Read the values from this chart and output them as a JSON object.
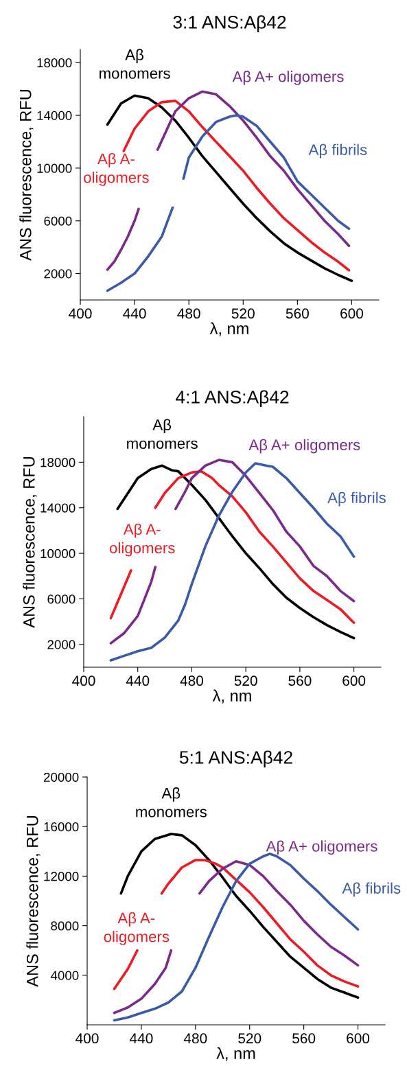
{
  "chart_data": [
    {
      "type": "line",
      "title": "3:1 ANS:Aβ42",
      "xlabel": "λ, nm",
      "ylabel": "ANS fluorescence, RFU",
      "xlim": [
        400,
        620
      ],
      "ylim": [
        0,
        19000
      ],
      "xticks": [
        400,
        440,
        480,
        520,
        560,
        600
      ],
      "yticks": [
        2000,
        6000,
        10000,
        14000,
        18000
      ],
      "series": [
        {
          "name": "Aβ\nmonomers",
          "color": "#000000",
          "x": [
            420,
            430,
            440,
            450,
            460,
            470,
            480,
            490,
            500,
            510,
            520,
            530,
            540,
            550,
            560,
            570,
            580,
            590,
            600
          ],
          "values": [
            13300,
            14900,
            15500,
            15300,
            14600,
            13600,
            12300,
            10900,
            9700,
            8500,
            7300,
            6200,
            5200,
            4300,
            3600,
            3000,
            2400,
            1900,
            1450
          ]
        },
        {
          "name": "Aβ A-\noligomers",
          "color": "#ed1c24",
          "x": [
            432,
            440,
            450,
            460,
            470,
            480,
            490,
            500,
            510,
            520,
            530,
            540,
            550,
            560,
            570,
            580,
            590,
            598
          ],
          "values": [
            11300,
            13000,
            14300,
            15000,
            15100,
            14300,
            13100,
            12000,
            10900,
            9800,
            8500,
            7300,
            6200,
            5300,
            4400,
            3600,
            2900,
            2250
          ]
        },
        {
          "name": "Aβ A+ oligomers",
          "color": "#7b2a8c",
          "x": [
            420,
            425,
            430,
            435,
            440,
            443,
            450,
            457,
            465,
            470,
            480,
            490,
            500,
            510,
            520,
            530,
            540,
            550,
            560,
            570,
            580,
            590,
            598
          ],
          "values": [
            2300,
            2900,
            3800,
            4800,
            6000,
            6900,
            null,
            11400,
            13200,
            14300,
            15300,
            15800,
            15600,
            14700,
            13600,
            12300,
            10900,
            9800,
            8400,
            7200,
            6000,
            5000,
            4100
          ]
        },
        {
          "name": "Aβ fibrils",
          "color": "#3a5ba9",
          "x": [
            420,
            430,
            440,
            450,
            460,
            468,
            472,
            476,
            480,
            490,
            500,
            510,
            515,
            520,
            530,
            540,
            550,
            560,
            570,
            580,
            590,
            598
          ],
          "values": [
            700,
            1300,
            2000,
            3300,
            4800,
            7000,
            null,
            9200,
            10800,
            12400,
            13500,
            13900,
            14000,
            13900,
            13200,
            12000,
            10800,
            9000,
            8000,
            7000,
            6000,
            5400
          ]
        }
      ]
    },
    {
      "type": "line",
      "title": "4:1 ANS:Aβ42",
      "xlabel": "λ, nm",
      "ylabel": "ANS fluorescence, RFU",
      "xlim": [
        400,
        620
      ],
      "ylim": [
        0,
        22000
      ],
      "xticks": [
        400,
        440,
        480,
        520,
        560,
        600
      ],
      "yticks": [
        2000,
        6000,
        10000,
        14000,
        18000
      ],
      "series": [
        {
          "name": "Aβ\nmonomers",
          "color": "#000000",
          "x": [
            425,
            440,
            450,
            458,
            465,
            470,
            480,
            490,
            500,
            510,
            520,
            530,
            540,
            550,
            560,
            570,
            580,
            590,
            600
          ],
          "values": [
            13900,
            16600,
            17400,
            17700,
            17300,
            17200,
            16000,
            14700,
            13100,
            11500,
            10000,
            8700,
            7300,
            6100,
            5200,
            4400,
            3700,
            3100,
            2550
          ]
        },
        {
          "name": "Aβ A-\noligomers",
          "color": "#ed1c24",
          "x": [
            420,
            425,
            430,
            435,
            444,
            453,
            460,
            470,
            480,
            487,
            495,
            500,
            510,
            520,
            530,
            540,
            550,
            560,
            570,
            580,
            590,
            600
          ],
          "values": [
            4300,
            5700,
            7100,
            8500,
            null,
            14000,
            15300,
            16600,
            17100,
            17200,
            16600,
            16000,
            15000,
            13600,
            11900,
            10600,
            9200,
            7800,
            6700,
            5900,
            5100,
            3900
          ]
        },
        {
          "name": "Aβ A+ oligomers",
          "color": "#7b2a8c",
          "x": [
            420,
            430,
            440,
            450,
            453,
            460,
            468,
            475,
            480,
            490,
            500,
            510,
            520,
            530,
            540,
            550,
            560,
            570,
            580,
            590,
            600
          ],
          "values": [
            2100,
            3000,
            4500,
            7500,
            8800,
            null,
            13900,
            15400,
            16600,
            17700,
            18200,
            18000,
            16800,
            15300,
            13800,
            11900,
            10600,
            8900,
            8000,
            6700,
            5800
          ]
        },
        {
          "name": "Aβ fibrils",
          "color": "#3a5ba9",
          "x": [
            420,
            430,
            440,
            450,
            460,
            470,
            475,
            480,
            490,
            500,
            510,
            520,
            527,
            535,
            540,
            550,
            560,
            570,
            580,
            590,
            600
          ],
          "values": [
            600,
            1000,
            1400,
            1700,
            2600,
            4100,
            5500,
            7300,
            10600,
            13300,
            15400,
            17100,
            17900,
            17700,
            17600,
            16600,
            15300,
            14000,
            12600,
            11500,
            9700
          ]
        }
      ]
    },
    {
      "type": "line",
      "title": "5:1 ANS:Aβ42",
      "xlabel": "λ, nm",
      "ylabel": "ANS fluorescence, RFU",
      "xlim": [
        400,
        620
      ],
      "ylim": [
        0,
        20000
      ],
      "xticks": [
        400,
        440,
        480,
        520,
        560,
        600
      ],
      "yticks": [
        4000,
        8000,
        12000,
        16000,
        20000
      ],
      "series": [
        {
          "name": "Aβ\nmonomers",
          "color": "#000000",
          "x": [
            425,
            430,
            440,
            450,
            462,
            470,
            480,
            490,
            500,
            510,
            520,
            530,
            540,
            550,
            560,
            570,
            580,
            590,
            600
          ],
          "values": [
            10600,
            12000,
            14000,
            15000,
            15400,
            15300,
            14500,
            13300,
            11900,
            10400,
            9200,
            7900,
            6700,
            5500,
            4600,
            3700,
            3000,
            2600,
            2200
          ]
        },
        {
          "name": "Aβ A-\noligomers",
          "color": "#ed1c24",
          "x": [
            420,
            430,
            437,
            446,
            455,
            460,
            470,
            480,
            487,
            495,
            500,
            510,
            520,
            530,
            540,
            550,
            560,
            570,
            580,
            590,
            600
          ],
          "values": [
            2900,
            4500,
            6000,
            null,
            10600,
            11400,
            12700,
            13300,
            13300,
            13000,
            12700,
            11700,
            10700,
            9500,
            8200,
            6900,
            5900,
            4800,
            4000,
            3500,
            3100
          ]
        },
        {
          "name": "Aβ A+ oligomers",
          "color": "#7b2a8c",
          "x": [
            420,
            430,
            440,
            450,
            458,
            462,
            472,
            483,
            490,
            500,
            510,
            520,
            530,
            540,
            550,
            560,
            570,
            580,
            590,
            600
          ],
          "values": [
            960,
            1400,
            2100,
            3300,
            4600,
            6000,
            null,
            10600,
            11600,
            12600,
            13200,
            12900,
            12000,
            10800,
            9700,
            8400,
            7300,
            6300,
            5600,
            4800
          ]
        },
        {
          "name": "Aβ fibrils",
          "color": "#3a5ba9",
          "x": [
            420,
            430,
            440,
            450,
            460,
            470,
            480,
            490,
            500,
            510,
            520,
            530,
            535,
            540,
            550,
            560,
            570,
            580,
            590,
            600
          ],
          "values": [
            360,
            600,
            960,
            1300,
            1800,
            2700,
            4600,
            7100,
            9500,
            11600,
            13000,
            13600,
            13800,
            13600,
            12900,
            11800,
            10800,
            9700,
            8700,
            7700
          ]
        }
      ]
    }
  ]
}
